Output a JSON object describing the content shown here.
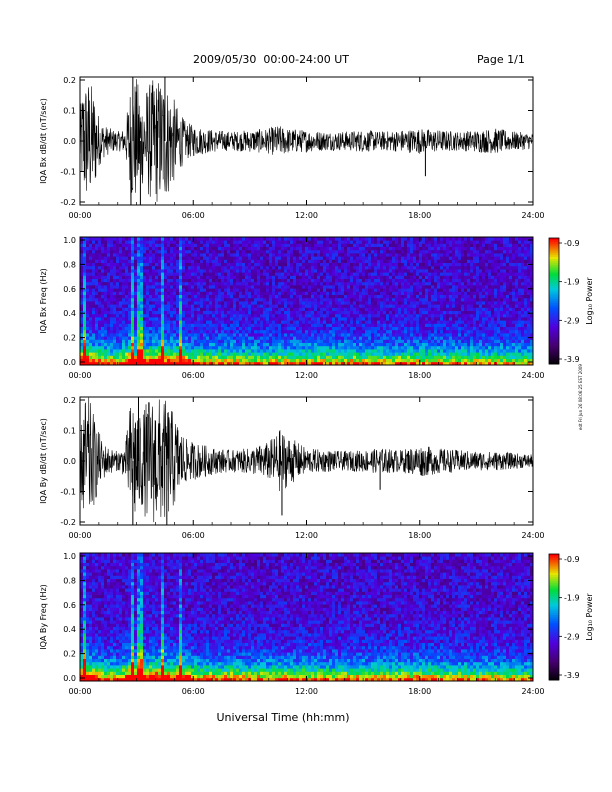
{
  "header": {
    "title": "2009/05/30  00:00-24:00 UT",
    "page": "Page 1/1"
  },
  "side_stamp": "edt Fri Jun 26 08:06:25 EST 2009",
  "xlabel": "Universal Time (hh:mm)",
  "chart_data": [
    {
      "type": "line",
      "ylabel": "IQA Bx dB/dt (nT/sec)",
      "xlim": [
        0,
        24
      ],
      "ylim": [
        -0.2,
        0.2
      ],
      "xticks": [
        "00:00",
        "06:00",
        "12:00",
        "18:00",
        "24:00"
      ],
      "yticks": [
        "0.2",
        "0.1",
        "0.0",
        "-0.1",
        "-0.2"
      ],
      "series": [
        {
          "color": "#000000",
          "envelope": [
            [
              0.0,
              0.09
            ],
            [
              0.2,
              0.2
            ],
            [
              0.5,
              0.2
            ],
            [
              0.8,
              0.15
            ],
            [
              1.0,
              0.08
            ],
            [
              1.3,
              0.05
            ],
            [
              1.6,
              0.04
            ],
            [
              2.0,
              0.03
            ],
            [
              2.4,
              0.04
            ],
            [
              2.7,
              0.2
            ],
            [
              3.0,
              0.2
            ],
            [
              3.3,
              0.14
            ],
            [
              3.6,
              0.18
            ],
            [
              4.0,
              0.2
            ],
            [
              4.4,
              0.2
            ],
            [
              4.8,
              0.16
            ],
            [
              5.2,
              0.1
            ],
            [
              5.6,
              0.06
            ],
            [
              6.0,
              0.05
            ],
            [
              6.6,
              0.04
            ],
            [
              7.2,
              0.035
            ],
            [
              8.0,
              0.03
            ],
            [
              9.0,
              0.035
            ],
            [
              10.0,
              0.04
            ],
            [
              10.5,
              0.05
            ],
            [
              11.0,
              0.04
            ],
            [
              12.0,
              0.035
            ],
            [
              13.0,
              0.03
            ],
            [
              14.0,
              0.03
            ],
            [
              15.0,
              0.035
            ],
            [
              16.0,
              0.03
            ],
            [
              17.0,
              0.035
            ],
            [
              18.0,
              0.04
            ],
            [
              19.0,
              0.035
            ],
            [
              20.0,
              0.03
            ],
            [
              21.0,
              0.035
            ],
            [
              22.0,
              0.04
            ],
            [
              23.0,
              0.03
            ],
            [
              24.0,
              0.025
            ]
          ],
          "spikes": [
            [
              2.7,
              -0.2
            ],
            [
              2.8,
              0.2
            ],
            [
              3.2,
              -0.2
            ],
            [
              4.5,
              0.2
            ],
            [
              18.3,
              -0.11
            ]
          ]
        }
      ]
    },
    {
      "type": "heatmap",
      "ylabel": "IQA Bx Freq (Hz)",
      "xlim": [
        0,
        24
      ],
      "ylim": [
        0,
        1.0
      ],
      "xticks": [
        "00:00",
        "06:00",
        "12:00",
        "18:00",
        "24:00"
      ],
      "yticks": [
        "1.0",
        "0.8",
        "0.6",
        "0.4",
        "0.2",
        "0.0"
      ],
      "colorbar": {
        "label": "Log₁₀ Power",
        "ticks": [
          "-0.9",
          "-1.9",
          "-2.9",
          "-3.9"
        ],
        "range": [
          -3.9,
          -0.9
        ]
      },
      "activity": [
        [
          0.0,
          0.9
        ],
        [
          0.3,
          0.95
        ],
        [
          1.0,
          0.55
        ],
        [
          2.0,
          0.35
        ],
        [
          2.7,
          1.0
        ],
        [
          3.0,
          0.7
        ],
        [
          4.0,
          0.85
        ],
        [
          5.0,
          0.65
        ],
        [
          5.3,
          0.8
        ],
        [
          6.0,
          0.45
        ],
        [
          9.0,
          0.35
        ],
        [
          13.5,
          0.4
        ],
        [
          18.5,
          0.35
        ],
        [
          20.0,
          0.3
        ],
        [
          24.0,
          0.25
        ]
      ],
      "vertical_lines": [
        0.2,
        2.75,
        3.2,
        4.4,
        5.3
      ]
    },
    {
      "type": "line",
      "ylabel": "IQA By dB/dt (nT/sec)",
      "xlim": [
        0,
        24
      ],
      "ylim": [
        -0.2,
        0.2
      ],
      "xticks": [
        "00:00",
        "06:00",
        "12:00",
        "18:00",
        "24:00"
      ],
      "yticks": [
        "0.2",
        "0.1",
        "0.0",
        "-0.1",
        "-0.2"
      ],
      "series": [
        {
          "color": "#000000",
          "envelope": [
            [
              0.0,
              0.08
            ],
            [
              0.2,
              0.2
            ],
            [
              0.5,
              0.2
            ],
            [
              0.8,
              0.13
            ],
            [
              1.2,
              0.06
            ],
            [
              1.6,
              0.04
            ],
            [
              2.0,
              0.03
            ],
            [
              2.4,
              0.05
            ],
            [
              2.7,
              0.2
            ],
            [
              3.0,
              0.2
            ],
            [
              3.3,
              0.15
            ],
            [
              3.6,
              0.2
            ],
            [
              4.0,
              0.2
            ],
            [
              4.4,
              0.2
            ],
            [
              4.8,
              0.17
            ],
            [
              5.2,
              0.12
            ],
            [
              5.6,
              0.07
            ],
            [
              6.0,
              0.06
            ],
            [
              6.6,
              0.05
            ],
            [
              7.2,
              0.04
            ],
            [
              8.0,
              0.035
            ],
            [
              9.0,
              0.04
            ],
            [
              10.0,
              0.06
            ],
            [
              10.6,
              0.1
            ],
            [
              11.0,
              0.08
            ],
            [
              12.0,
              0.04
            ],
            [
              13.0,
              0.035
            ],
            [
              14.0,
              0.03
            ],
            [
              15.0,
              0.035
            ],
            [
              16.0,
              0.04
            ],
            [
              17.0,
              0.035
            ],
            [
              18.0,
              0.05
            ],
            [
              19.0,
              0.04
            ],
            [
              20.0,
              0.035
            ],
            [
              21.0,
              0.03
            ],
            [
              22.0,
              0.03
            ],
            [
              23.0,
              0.025
            ],
            [
              24.0,
              0.02
            ]
          ],
          "spikes": [
            [
              2.8,
              -0.2
            ],
            [
              3.1,
              0.2
            ],
            [
              4.6,
              -0.2
            ],
            [
              10.7,
              -0.17
            ],
            [
              15.9,
              -0.09
            ]
          ]
        }
      ]
    },
    {
      "type": "heatmap",
      "ylabel": "IQA By Freq (Hz)",
      "xlim": [
        0,
        24
      ],
      "ylim": [
        0,
        1.0
      ],
      "xticks": [
        "00:00",
        "06:00",
        "12:00",
        "18:00",
        "24:00"
      ],
      "yticks": [
        "1.0",
        "0.8",
        "0.6",
        "0.4",
        "0.2",
        "0.0"
      ],
      "colorbar": {
        "label": "Log₁₀ Power",
        "ticks": [
          "-0.9",
          "-1.9",
          "-2.9",
          "-3.9"
        ],
        "range": [
          -3.9,
          -0.9
        ]
      },
      "activity": [
        [
          0.0,
          0.95
        ],
        [
          0.3,
          1.0
        ],
        [
          1.0,
          0.6
        ],
        [
          2.0,
          0.4
        ],
        [
          2.7,
          1.0
        ],
        [
          3.0,
          0.8
        ],
        [
          4.0,
          0.9
        ],
        [
          5.0,
          0.75
        ],
        [
          5.3,
          0.85
        ],
        [
          6.0,
          0.5
        ],
        [
          9.0,
          0.4
        ],
        [
          10.5,
          0.45
        ],
        [
          13.5,
          0.35
        ],
        [
          18.5,
          0.45
        ],
        [
          20.0,
          0.35
        ],
        [
          24.0,
          0.25
        ]
      ],
      "vertical_lines": [
        0.2,
        2.75,
        3.2,
        4.4,
        5.3
      ]
    }
  ]
}
